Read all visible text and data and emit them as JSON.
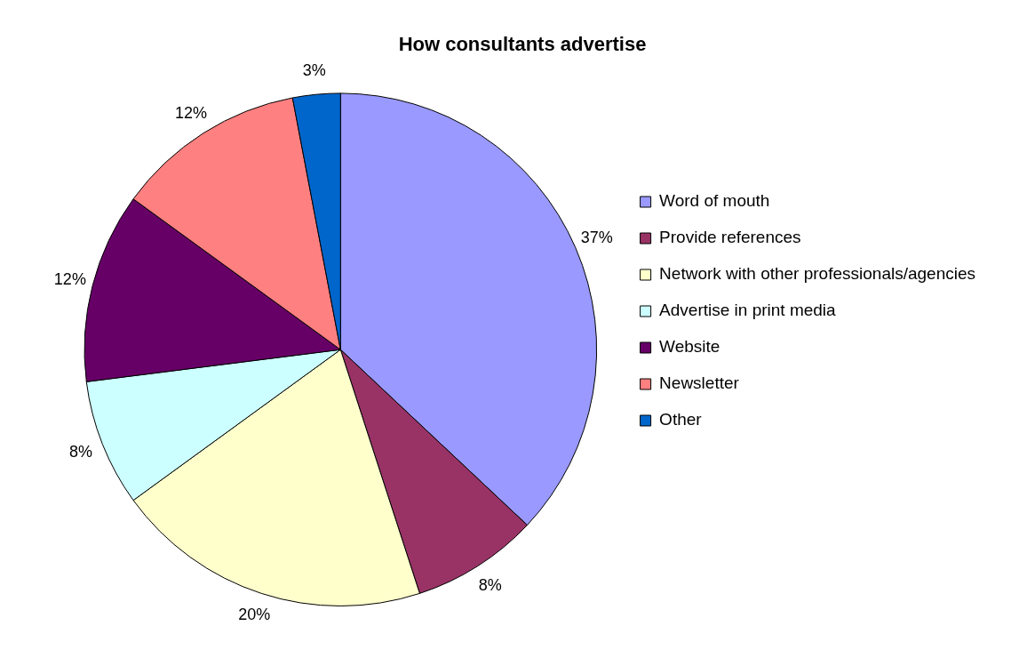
{
  "chart_data": {
    "type": "pie",
    "title": "How consultants advertise",
    "categories": [
      "Word of mouth",
      "Provide references",
      "Network with other professionals/agencies",
      "Advertise in print media",
      "Website",
      "Newsletter",
      "Other"
    ],
    "values": [
      37,
      8,
      20,
      8,
      12,
      12,
      3
    ],
    "value_labels": [
      "37%",
      "8%",
      "20%",
      "8%",
      "12%",
      "12%",
      "3%"
    ],
    "colors": [
      "#9999ff",
      "#993366",
      "#ffffcc",
      "#ccffff",
      "#660066",
      "#ff8080",
      "#0066cc"
    ],
    "legend": "right"
  }
}
